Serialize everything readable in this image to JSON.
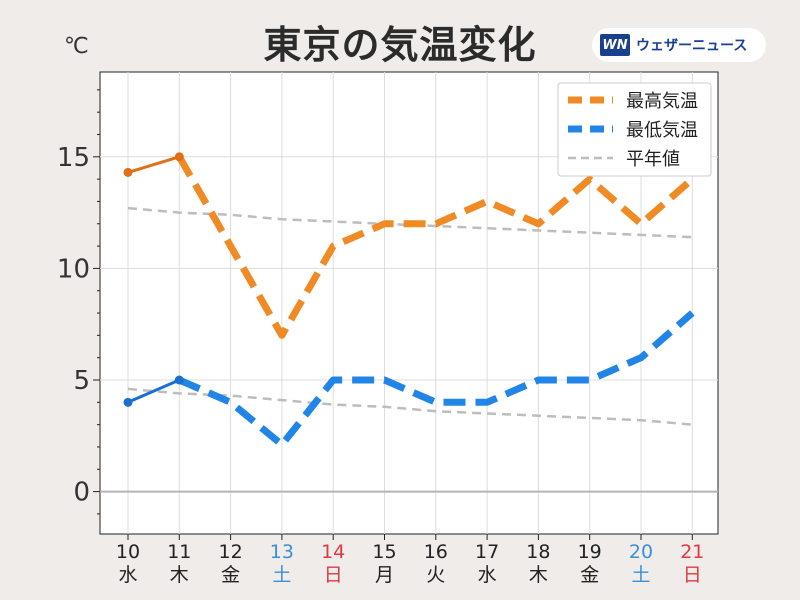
{
  "title": "東京の気温変化",
  "unit": "℃",
  "brand": {
    "logo_text": "WN",
    "name": "ウェザーニュース",
    "color": "#1a3f8f"
  },
  "chart_data": {
    "type": "line",
    "x": [
      "10",
      "11",
      "12",
      "13",
      "14",
      "15",
      "16",
      "17",
      "18",
      "19",
      "20",
      "21"
    ],
    "weekday": [
      "水",
      "木",
      "金",
      "土",
      "日",
      "月",
      "火",
      "水",
      "木",
      "金",
      "土",
      "日"
    ],
    "day_colors": [
      "#222222",
      "#222222",
      "#222222",
      "#3a8fd8",
      "#e0393e",
      "#222222",
      "#222222",
      "#222222",
      "#222222",
      "#222222",
      "#3a8fd8",
      "#e0393e"
    ],
    "yticks": [
      0,
      5,
      10,
      15
    ],
    "ylim": [
      -1.9,
      18.8
    ],
    "grid": true,
    "legend_position": "top-right",
    "observed_until_index": 1,
    "series": [
      {
        "name": "最高気温",
        "color": "#f08a24",
        "observed_color": "#e07018",
        "values": [
          14.3,
          15,
          11,
          7,
          11,
          12,
          12,
          13,
          12,
          14,
          12,
          14
        ]
      },
      {
        "name": "最低気温",
        "color": "#2185e8",
        "observed_color": "#1b6fd0",
        "values": [
          4,
          5,
          4,
          2.1,
          5,
          5,
          4,
          4,
          5,
          5,
          6,
          8
        ]
      },
      {
        "name": "平年値",
        "color": "#bdbdbd",
        "values": [
          12.7,
          12.5,
          12.4,
          12.2,
          12.1,
          12.0,
          11.9,
          11.8,
          11.7,
          11.6,
          11.5,
          11.4
        ]
      },
      {
        "name": "平年値",
        "color": "#bdbdbd",
        "legend": false,
        "values": [
          4.6,
          4.4,
          4.3,
          4.1,
          3.9,
          3.8,
          3.6,
          3.5,
          3.4,
          3.3,
          3.2,
          3.0
        ]
      }
    ]
  }
}
